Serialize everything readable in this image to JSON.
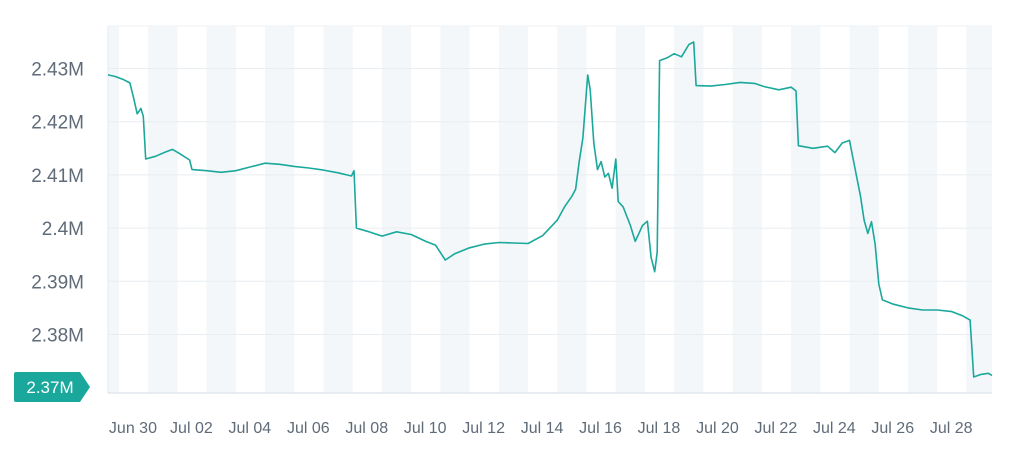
{
  "chart_data": {
    "type": "line",
    "title": "",
    "xlabel": "",
    "ylabel": "",
    "x_ticks": [
      "Jun 30",
      "Jul 02",
      "Jul 04",
      "Jul 06",
      "Jul 08",
      "Jul 10",
      "Jul 12",
      "Jul 14",
      "Jul 16",
      "Jul 18",
      "Jul 20",
      "Jul 22",
      "Jul 24",
      "Jul 26",
      "Jul 28"
    ],
    "y_ticks": [
      "2.37M",
      "2.38M",
      "2.39M",
      "2.4M",
      "2.41M",
      "2.42M",
      "2.43M"
    ],
    "y_tick_values": [
      2370000,
      2380000,
      2390000,
      2400000,
      2410000,
      2420000,
      2430000
    ],
    "xlim": [
      "2025-06-29T15:00",
      "2025-07-29T21:00"
    ],
    "ylim": [
      2369000,
      2438000
    ],
    "current_value_label": "2.37M",
    "grid": "alternating day bands",
    "colors": {
      "line": "#1aa89c",
      "badge": "#1aa89c",
      "band": "#f3f7f9",
      "axis": "#d5dde4",
      "tick_text": "#5f6b78"
    },
    "series": [
      {
        "points": [
          [
            "2025-06-29T15:00",
            2428800
          ],
          [
            "2025-06-29T21:00",
            2428500
          ],
          [
            "2025-06-30T03:00",
            2428000
          ],
          [
            "2025-06-30T09:00",
            2427300
          ],
          [
            "2025-06-30T12:00",
            2424500
          ],
          [
            "2025-06-30T15:00",
            2421500
          ],
          [
            "2025-06-30T18:00",
            2422500
          ],
          [
            "2025-06-30T20:00",
            2421000
          ],
          [
            "2025-06-30T22:00",
            2413000
          ],
          [
            "2025-07-01T06:00",
            2413500
          ],
          [
            "2025-07-01T14:00",
            2414300
          ],
          [
            "2025-07-01T20:00",
            2414800
          ],
          [
            "2025-07-02T02:00",
            2414000
          ],
          [
            "2025-07-02T10:00",
            2412800
          ],
          [
            "2025-07-02T12:00",
            2411000
          ],
          [
            "2025-07-03T00:00",
            2410800
          ],
          [
            "2025-07-03T12:00",
            2410500
          ],
          [
            "2025-07-04T00:00",
            2410800
          ],
          [
            "2025-07-04T12:00",
            2411500
          ],
          [
            "2025-07-05T00:00",
            2412200
          ],
          [
            "2025-07-05T12:00",
            2412000
          ],
          [
            "2025-07-06T00:00",
            2411600
          ],
          [
            "2025-07-06T12:00",
            2411300
          ],
          [
            "2025-07-07T00:00",
            2410900
          ],
          [
            "2025-07-07T12:00",
            2410400
          ],
          [
            "2025-07-07T23:00",
            2409800
          ],
          [
            "2025-07-08T01:00",
            2410800
          ],
          [
            "2025-07-08T03:00",
            2400000
          ],
          [
            "2025-07-08T12:00",
            2399400
          ],
          [
            "2025-07-09T00:00",
            2398500
          ],
          [
            "2025-07-09T12:00",
            2399300
          ],
          [
            "2025-07-10T00:00",
            2398800
          ],
          [
            "2025-07-10T12:00",
            2397500
          ],
          [
            "2025-07-10T20:00",
            2396800
          ],
          [
            "2025-07-11T04:00",
            2394000
          ],
          [
            "2025-07-11T12:00",
            2395200
          ],
          [
            "2025-07-12T00:00",
            2396300
          ],
          [
            "2025-07-12T12:00",
            2397000
          ],
          [
            "2025-07-13T00:00",
            2397300
          ],
          [
            "2025-07-13T12:00",
            2397200
          ],
          [
            "2025-07-14T00:00",
            2397100
          ],
          [
            "2025-07-14T12:00",
            2398600
          ],
          [
            "2025-07-15T00:00",
            2401500
          ],
          [
            "2025-07-15T06:00",
            2404000
          ],
          [
            "2025-07-15T12:00",
            2406000
          ],
          [
            "2025-07-15T15:00",
            2407300
          ],
          [
            "2025-07-15T18:00",
            2412500
          ],
          [
            "2025-07-15T21:00",
            2417000
          ],
          [
            "2025-07-16T01:00",
            2428800
          ],
          [
            "2025-07-16T03:00",
            2426000
          ],
          [
            "2025-07-16T06:00",
            2416000
          ],
          [
            "2025-07-16T09:00",
            2411000
          ],
          [
            "2025-07-16T12:00",
            2412500
          ],
          [
            "2025-07-16T15:00",
            2409600
          ],
          [
            "2025-07-16T18:00",
            2410300
          ],
          [
            "2025-07-16T21:00",
            2407500
          ],
          [
            "2025-07-17T00:00",
            2413000
          ],
          [
            "2025-07-17T02:00",
            2405000
          ],
          [
            "2025-07-17T06:00",
            2404000
          ],
          [
            "2025-07-17T12:00",
            2400500
          ],
          [
            "2025-07-17T16:00",
            2397500
          ],
          [
            "2025-07-17T19:00",
            2399000
          ],
          [
            "2025-07-17T22:00",
            2400500
          ],
          [
            "2025-07-18T02:00",
            2401300
          ],
          [
            "2025-07-18T05:00",
            2394500
          ],
          [
            "2025-07-18T08:00",
            2391800
          ],
          [
            "2025-07-18T10:00",
            2395500
          ],
          [
            "2025-07-18T12:00",
            2431500
          ],
          [
            "2025-07-18T18:00",
            2432000
          ],
          [
            "2025-07-19T00:00",
            2432800
          ],
          [
            "2025-07-19T06:00",
            2432200
          ],
          [
            "2025-07-19T12:00",
            2434500
          ],
          [
            "2025-07-19T16:00",
            2435000
          ],
          [
            "2025-07-19T18:00",
            2426800
          ],
          [
            "2025-07-20T06:00",
            2426700
          ],
          [
            "2025-07-20T18:00",
            2427000
          ],
          [
            "2025-07-21T06:00",
            2427400
          ],
          [
            "2025-07-21T18:00",
            2427200
          ],
          [
            "2025-07-22T02:00",
            2426600
          ],
          [
            "2025-07-22T14:00",
            2426000
          ],
          [
            "2025-07-23T00:00",
            2426500
          ],
          [
            "2025-07-23T04:00",
            2425800
          ],
          [
            "2025-07-23T06:00",
            2415500
          ],
          [
            "2025-07-23T18:00",
            2415000
          ],
          [
            "2025-07-24T06:00",
            2415400
          ],
          [
            "2025-07-24T12:00",
            2414200
          ],
          [
            "2025-07-24T18:00",
            2416000
          ],
          [
            "2025-07-25T00:00",
            2416500
          ],
          [
            "2025-07-25T06:00",
            2409500
          ],
          [
            "2025-07-25T09:00",
            2406000
          ],
          [
            "2025-07-25T12:00",
            2401500
          ],
          [
            "2025-07-25T15:00",
            2399000
          ],
          [
            "2025-07-25T18:00",
            2401200
          ],
          [
            "2025-07-25T21:00",
            2397000
          ],
          [
            "2025-07-26T00:00",
            2389500
          ],
          [
            "2025-07-26T03:00",
            2386500
          ],
          [
            "2025-07-26T12:00",
            2385700
          ],
          [
            "2025-07-27T00:00",
            2385000
          ],
          [
            "2025-07-27T12:00",
            2384600
          ],
          [
            "2025-07-28T00:00",
            2384600
          ],
          [
            "2025-07-28T12:00",
            2384300
          ],
          [
            "2025-07-28T21:00",
            2383500
          ],
          [
            "2025-07-29T03:00",
            2382700
          ],
          [
            "2025-07-29T06:00",
            2372000
          ],
          [
            "2025-07-29T12:00",
            2372500
          ],
          [
            "2025-07-29T18:00",
            2372700
          ],
          [
            "2025-07-29T21:00",
            2372300
          ]
        ]
      }
    ]
  }
}
